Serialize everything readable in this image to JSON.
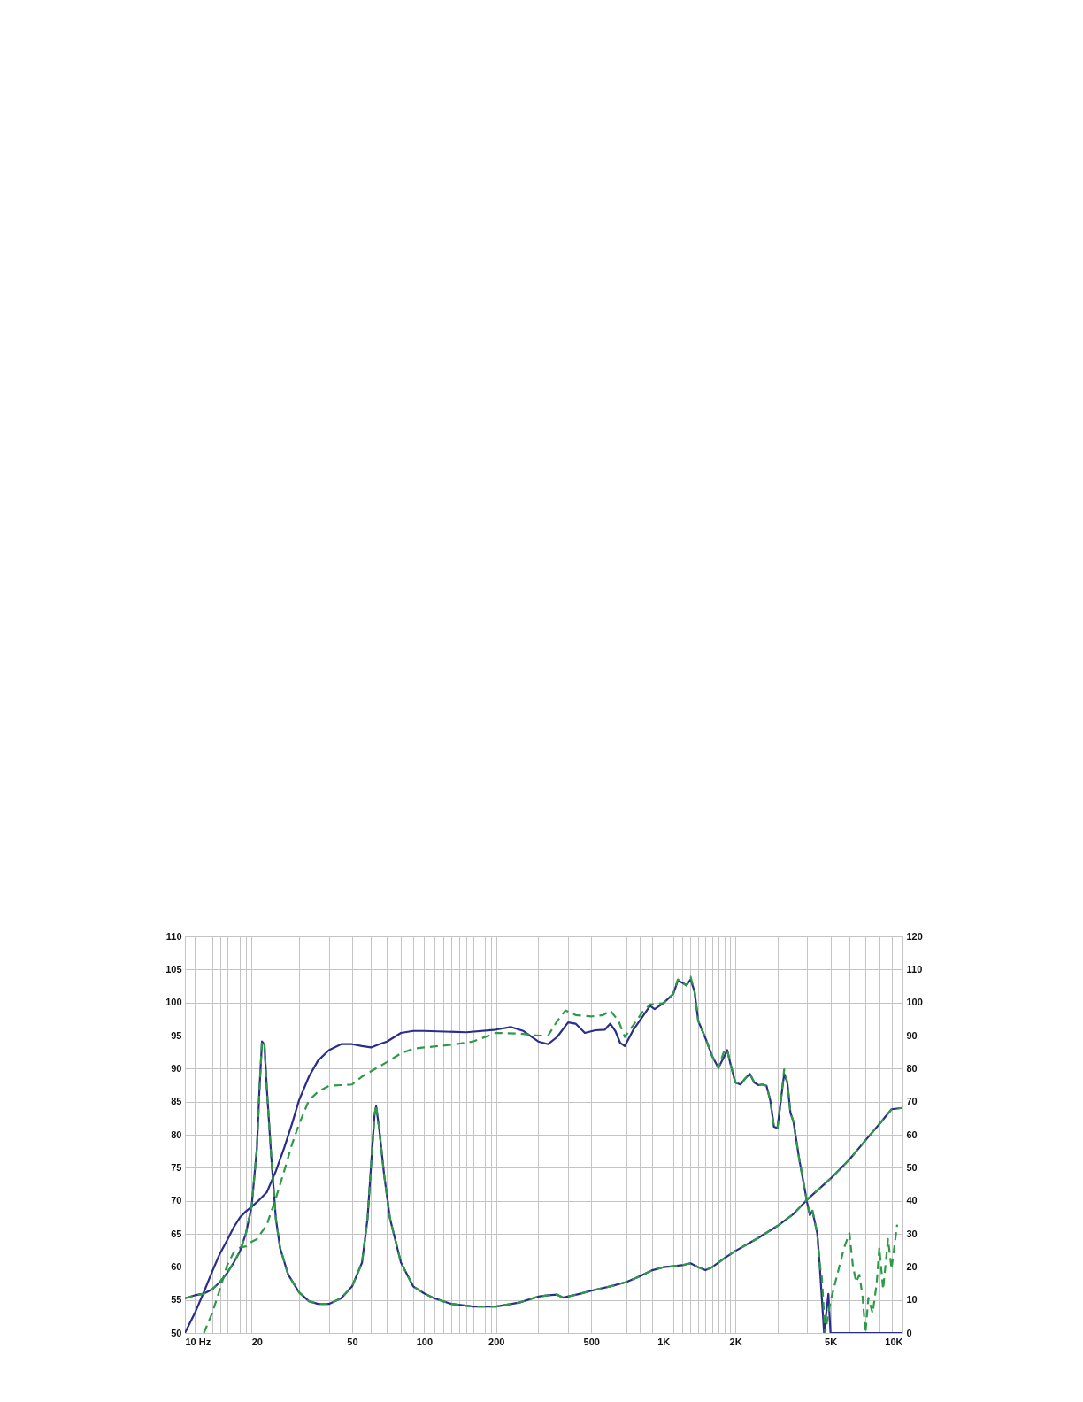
{
  "chart_data": {
    "type": "line",
    "log": "x",
    "grid": true,
    "xlim": [
      10,
      10000
    ],
    "ylim": [
      50,
      110
    ],
    "y2lim": [
      0,
      120
    ],
    "xticks": [
      {
        "value": 10,
        "label": "10  Hz"
      },
      {
        "value": 11,
        "label": null
      },
      {
        "value": 12,
        "label": null
      },
      {
        "value": 13,
        "label": null
      },
      {
        "value": 14,
        "label": null
      },
      {
        "value": 15,
        "label": null
      },
      {
        "value": 16,
        "label": null
      },
      {
        "value": 17,
        "label": null
      },
      {
        "value": 18,
        "label": null
      },
      {
        "value": 19,
        "label": null
      },
      20,
      {
        "value": 30,
        "label": null
      },
      {
        "value": 40,
        "label": null
      },
      50,
      {
        "value": 60,
        "label": null
      },
      {
        "value": 70,
        "label": null
      },
      {
        "value": 80,
        "label": null
      },
      {
        "value": 90,
        "label": null
      },
      100,
      {
        "value": 110,
        "label": null
      },
      {
        "value": 120,
        "label": null
      },
      {
        "value": 130,
        "label": null
      },
      {
        "value": 140,
        "label": null
      },
      {
        "value": 150,
        "label": null
      },
      {
        "value": 160,
        "label": null
      },
      {
        "value": 170,
        "label": null
      },
      {
        "value": 180,
        "label": null
      },
      {
        "value": 190,
        "label": null
      },
      200,
      {
        "value": 300,
        "label": null
      },
      {
        "value": 400,
        "label": null
      },
      500,
      {
        "value": 600,
        "label": null
      },
      {
        "value": 700,
        "label": null
      },
      {
        "value": 800,
        "label": null
      },
      {
        "value": 900,
        "label": null
      },
      {
        "value": 1000,
        "label": "1K"
      },
      {
        "value": 1100,
        "label": null
      },
      {
        "value": 1200,
        "label": null
      },
      {
        "value": 1300,
        "label": null
      },
      {
        "value": 1400,
        "label": null
      },
      {
        "value": 1500,
        "label": null
      },
      {
        "value": 1600,
        "label": null
      },
      {
        "value": 1700,
        "label": null
      },
      {
        "value": 1800,
        "label": null
      },
      {
        "value": 1900,
        "label": null
      },
      {
        "value": 2000,
        "label": "2K"
      },
      {
        "value": 3000,
        "label": null
      },
      {
        "value": 4000,
        "label": null
      },
      {
        "value": 5000,
        "label": "5K"
      },
      {
        "value": 6000,
        "label": null
      },
      {
        "value": 7000,
        "label": null
      },
      {
        "value": 8000,
        "label": null
      },
      {
        "value": 9000,
        "label": null
      },
      {
        "value": 10000,
        "label": "10K"
      }
    ],
    "yticks": [
      50,
      55,
      60,
      65,
      70,
      75,
      80,
      85,
      90,
      95,
      100,
      105,
      110
    ],
    "y2ticks": [
      0,
      10,
      20,
      30,
      40,
      50,
      60,
      70,
      80,
      90,
      100,
      110,
      120
    ],
    "series": [
      {
        "color": "#2e9a48",
        "line_style": "dashed",
        "x": [
          12,
          13,
          14,
          15,
          16,
          17,
          18,
          19,
          20,
          22,
          24,
          26,
          28,
          30,
          33,
          36,
          40,
          45,
          50,
          55,
          60,
          70,
          80,
          90,
          100,
          130,
          160,
          200,
          250,
          300,
          330,
          360,
          390,
          430,
          500,
          560,
          600,
          650,
          690,
          750,
          820,
          880,
          1000,
          1100,
          1150,
          1200,
          1250,
          1300,
          1350,
          1400,
          1500,
          1600,
          1700,
          1800,
          1850,
          1900,
          2000,
          2100,
          2200,
          2300,
          2400,
          2500,
          2600,
          2700,
          2800,
          2900,
          3000,
          3100,
          3200,
          3300,
          3400,
          3500,
          3700,
          4000,
          4100,
          4200,
          4400,
          4500,
          4600,
          4750,
          5000,
          5300,
          5700,
          6000,
          6200,
          6400,
          6600,
          6800,
          7000,
          7200,
          7500,
          7800,
          8000,
          8300,
          8700,
          9000,
          9500
        ],
        "values": [
          50,
          53,
          56.6,
          60.2,
          62.2,
          62.9,
          63.1,
          63.8,
          64.2,
          66.4,
          70.4,
          74.5,
          78.5,
          81.6,
          85.2,
          86.5,
          87.4,
          87.5,
          87.6,
          88.8,
          89.6,
          91,
          92.3,
          93,
          93.2,
          93.6,
          94.1,
          95.4,
          95.3,
          95,
          95,
          97.2,
          98.8,
          98.1,
          97.9,
          98.1,
          98.8,
          97.2,
          94.8,
          96.6,
          98.6,
          99.7,
          99.9,
          101.3,
          103.5,
          103,
          102.6,
          103.9,
          101.7,
          97.2,
          94.6,
          91.9,
          90.1,
          92.8,
          92.8,
          91,
          87.9,
          87.6,
          88.5,
          89.2,
          87.9,
          87.5,
          87.6,
          87.4,
          85.2,
          81.2,
          81,
          85.2,
          89.9,
          87.9,
          83.3,
          82,
          76.3,
          69.6,
          67.8,
          68.5,
          65.1,
          60.6,
          58.4,
          50,
          54.8,
          58.4,
          62.9,
          65.1,
          60.2,
          57.7,
          58.8,
          55.7,
          50,
          55.3,
          53,
          57.5,
          62.9,
          56.6,
          64.2,
          59.7,
          66.4
        ]
      },
      {
        "color": "#2b2d8c",
        "line_style": "solid",
        "x": [
          10,
          11,
          12,
          13,
          14,
          15,
          16,
          17,
          18,
          19,
          20,
          22,
          24,
          26,
          28,
          30,
          33,
          36,
          40,
          45,
          50,
          55,
          60,
          65,
          70,
          80,
          90,
          100,
          150,
          200,
          230,
          260,
          300,
          330,
          360,
          400,
          430,
          470,
          520,
          570,
          600,
          630,
          660,
          690,
          750,
          820,
          880,
          920,
          1000,
          1100,
          1150,
          1200,
          1250,
          1300,
          1350,
          1400,
          1500,
          1600,
          1700,
          1800,
          1850,
          1900,
          2000,
          2100,
          2200,
          2300,
          2400,
          2500,
          2600,
          2700,
          2800,
          2900,
          3000,
          3100,
          3200,
          3300,
          3400,
          3500,
          3700,
          4000,
          4100,
          4200,
          4400,
          4500,
          4700,
          4900,
          5000,
          10000
        ],
        "values": [
          50,
          53,
          56.2,
          59.3,
          62,
          64,
          66,
          67.5,
          68.4,
          69.1,
          69.8,
          71.3,
          74.5,
          78,
          81.6,
          85.2,
          88.8,
          91.2,
          92.8,
          93.7,
          93.7,
          93.4,
          93.2,
          93.7,
          94.1,
          95.4,
          95.7,
          95.7,
          95.5,
          95.9,
          96.3,
          95.7,
          94.1,
          93.7,
          94.8,
          97,
          96.8,
          95.4,
          95.8,
          95.9,
          96.8,
          95.7,
          93.9,
          93.4,
          95.9,
          97.9,
          99.5,
          99,
          99.9,
          101.3,
          103.3,
          103,
          102.6,
          103.5,
          101.7,
          97.2,
          94.6,
          91.9,
          90.1,
          91.9,
          92.8,
          91,
          87.9,
          87.6,
          88.5,
          89.2,
          87.9,
          87.5,
          87.6,
          87.4,
          85.2,
          81.2,
          81,
          85.2,
          89.2,
          87.9,
          83.3,
          82,
          76.3,
          69.6,
          67.8,
          68.5,
          65.1,
          60.6,
          50,
          55.9,
          50,
          50
        ]
      },
      {
        "color": "#2e9a48",
        "line_style": "dashed",
        "axis": "y2",
        "x": [
          10,
          11,
          12,
          13,
          14,
          15,
          16,
          17,
          18,
          19,
          20,
          20.5,
          21,
          21.5,
          22,
          23,
          24,
          25,
          27,
          30,
          33,
          36,
          40,
          45,
          50,
          55,
          58,
          60,
          62,
          63,
          65,
          68,
          72,
          80,
          90,
          100,
          110,
          130,
          160,
          200,
          250,
          300,
          330,
          360,
          380,
          450,
          500,
          600,
          700,
          800,
          900,
          1000,
          1100,
          1200,
          1300,
          1400,
          1500,
          1600,
          1800,
          2000,
          2500,
          3000,
          3500,
          4000,
          5000,
          6000,
          7000,
          8000,
          9000,
          10000
        ],
        "values": [
          10.5,
          11.4,
          11.9,
          13.2,
          15.4,
          18.1,
          21.3,
          24.8,
          30.2,
          38.2,
          56,
          74,
          88.5,
          87.3,
          74,
          52.5,
          34.6,
          25.7,
          17.7,
          12.3,
          9.6,
          8.8,
          8.8,
          10.5,
          14.1,
          21.3,
          34.6,
          50.7,
          66,
          69,
          61.4,
          48,
          34.6,
          21.3,
          14.1,
          12,
          10.5,
          8.8,
          8,
          8,
          9.2,
          11,
          11.4,
          11.6,
          10.7,
          11.9,
          12.8,
          14.1,
          15.4,
          17.2,
          19,
          19.9,
          20.2,
          20.5,
          21.1,
          19.9,
          19,
          19.9,
          22.6,
          24.8,
          28.8,
          32.4,
          36,
          40.4,
          46.7,
          52.5,
          58.3,
          63.2,
          67.7,
          68.1
        ]
      },
      {
        "color": "#2b2d8c",
        "line_style": "solid",
        "axis": "y2",
        "x": [
          10,
          11,
          12,
          13,
          14,
          15,
          16,
          17,
          18,
          19,
          20,
          20.5,
          21,
          21.5,
          22,
          23,
          24,
          25,
          27,
          30,
          33,
          36,
          40,
          45,
          50,
          55,
          58,
          60,
          62,
          63,
          65,
          68,
          72,
          80,
          90,
          100,
          110,
          130,
          160,
          200,
          250,
          300,
          330,
          360,
          380,
          450,
          500,
          600,
          700,
          800,
          900,
          1000,
          1100,
          1200,
          1300,
          1400,
          1500,
          1600,
          1800,
          2000,
          2500,
          3000,
          3500,
          4000,
          5000,
          6000,
          7000,
          8000,
          9000,
          10000
        ],
        "values": [
          10.5,
          11.4,
          11.9,
          13.2,
          15.4,
          18.1,
          21.3,
          24.8,
          30.2,
          38.2,
          56,
          74,
          88.2,
          87.3,
          74,
          52.5,
          34.6,
          25.7,
          17.7,
          12.3,
          9.6,
          8.8,
          8.8,
          10.5,
          14.1,
          21.3,
          34.6,
          50.7,
          65.9,
          68.6,
          61.4,
          48,
          34.6,
          21.3,
          14.1,
          12,
          10.5,
          8.8,
          8,
          8,
          9.2,
          11,
          11.4,
          11.6,
          10.7,
          11.9,
          12.8,
          14.1,
          15.4,
          17.2,
          19,
          19.9,
          20.2,
          20.5,
          21.1,
          19.9,
          19,
          19.9,
          22.6,
          24.8,
          28.8,
          32.4,
          36,
          40.4,
          46.7,
          52.5,
          58.3,
          63.2,
          67.7,
          68.1
        ]
      }
    ]
  }
}
